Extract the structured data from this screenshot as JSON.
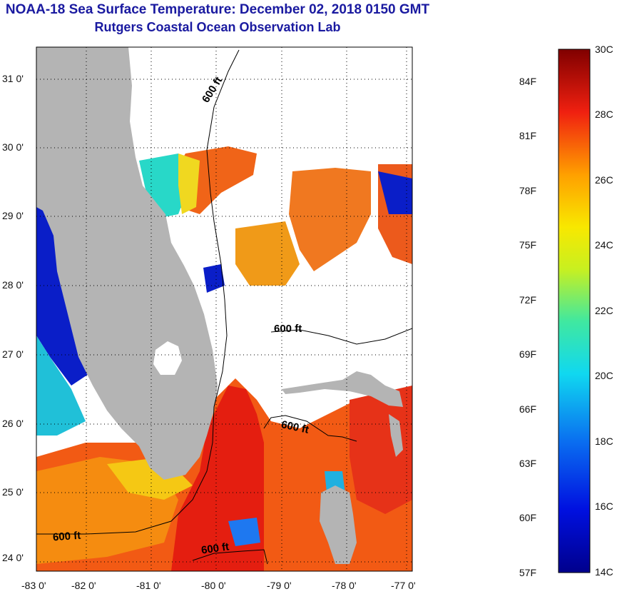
{
  "title": {
    "line1": "NOAA-18 Sea Surface Temperature:  December 02, 2018 0150 GMT",
    "line2": "Rutgers Coastal Ocean Observation Lab"
  },
  "map": {
    "lat_labels": [
      "31 0'",
      "30 0'",
      "29 0'",
      "28 0'",
      "27 0'",
      "26 0'",
      "25 0'",
      "24 0'"
    ],
    "lon_labels": [
      "-83 0'",
      "-82 0'",
      "-81 0'",
      "-80 0'",
      "-79 0'",
      "-78 0'",
      "-77 0'"
    ],
    "contour_labels": [
      "600 ft",
      "600 ft",
      "600 ft",
      "600 ft",
      "600 ft"
    ],
    "colors": {
      "land": "#b4b4b4",
      "cloud": "#ffffff",
      "warm": "#e8281e",
      "cold": "#0a1ec8"
    }
  },
  "colorbar": {
    "fahrenheit": [
      "84F",
      "81F",
      "78F",
      "75F",
      "72F",
      "69F",
      "66F",
      "63F",
      "60F",
      "57F"
    ],
    "celsius": [
      "30C",
      "28C",
      "26C",
      "24C",
      "22C",
      "20C",
      "18C",
      "16C",
      "14C"
    ]
  }
}
